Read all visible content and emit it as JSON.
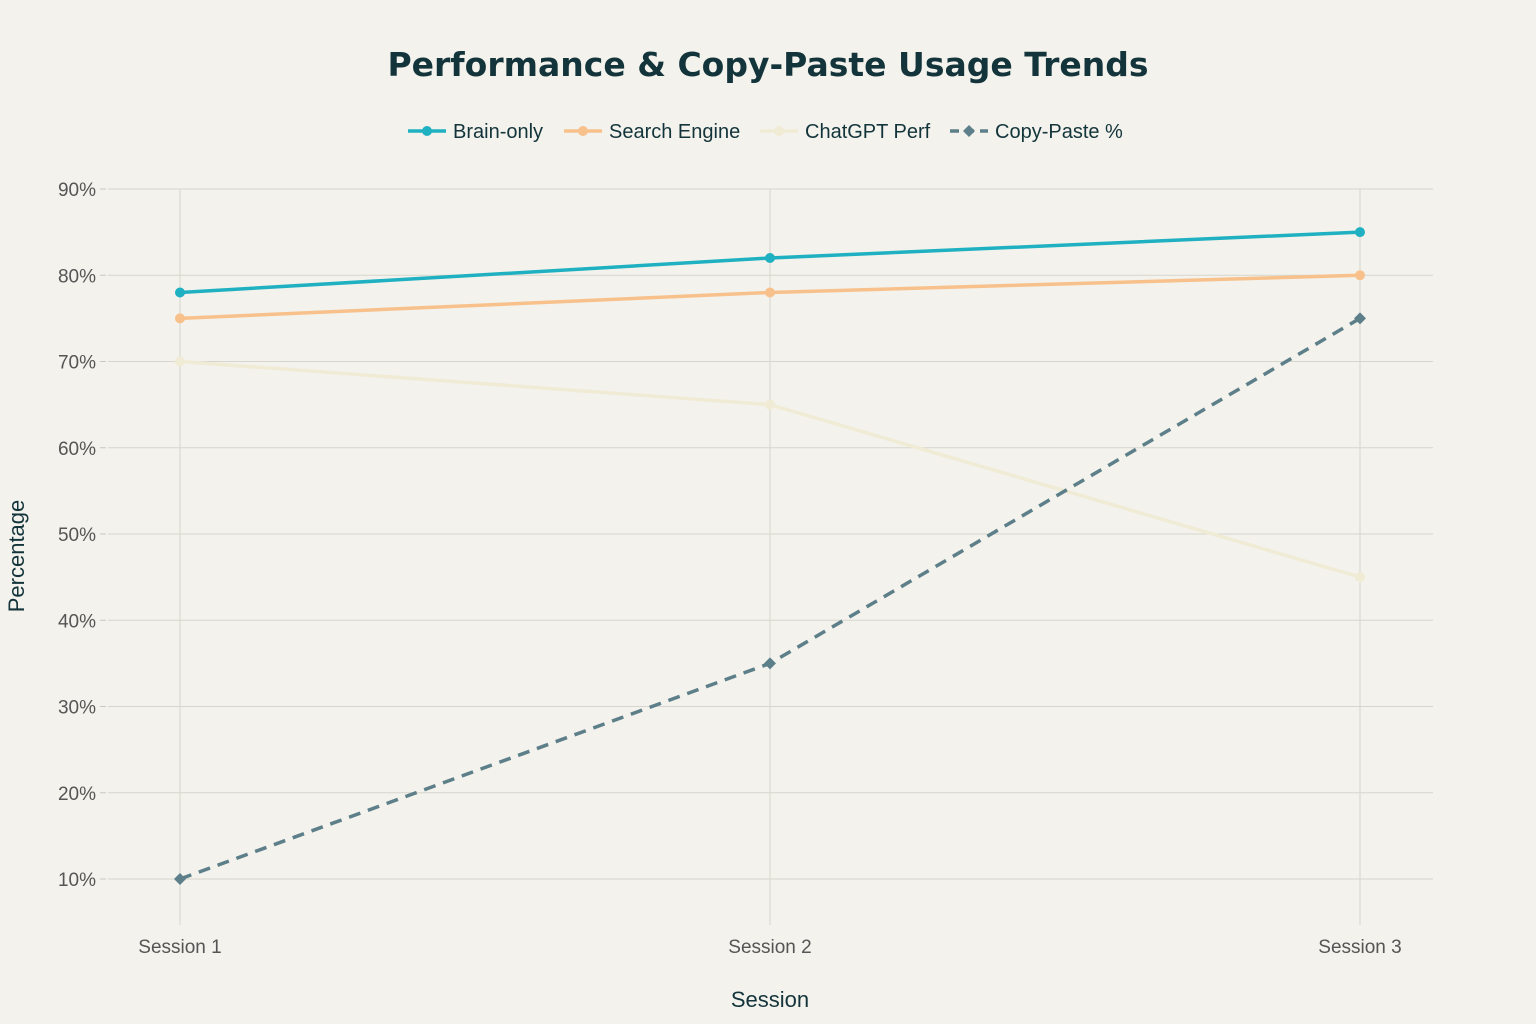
{
  "chart_data": {
    "type": "line",
    "title": "Performance & Copy-Paste Usage Trends",
    "xlabel": "Session",
    "ylabel": "Percentage",
    "categories": [
      "Session 1",
      "Session 2",
      "Session 3"
    ],
    "ylim": [
      5,
      90
    ],
    "yticks": [
      10,
      20,
      30,
      40,
      50,
      60,
      70,
      80,
      90
    ],
    "ytick_suffix": "%",
    "grid": true,
    "legend_position": "top-center",
    "series": [
      {
        "name": "Brain-only",
        "values": [
          78,
          82,
          85
        ],
        "color": "#1FB1C1",
        "marker": "circle",
        "dash": "solid"
      },
      {
        "name": "Search Engine",
        "values": [
          75,
          78,
          80
        ],
        "color": "#F8C18B",
        "marker": "circle",
        "dash": "solid"
      },
      {
        "name": "ChatGPT Perf",
        "values": [
          70,
          65,
          45
        ],
        "color": "#F0EBD5",
        "marker": "circle",
        "dash": "solid"
      },
      {
        "name": "Copy-Paste %",
        "values": [
          10,
          35,
          75
        ],
        "color": "#5D7F89",
        "marker": "diamond",
        "dash": "dashed"
      }
    ]
  }
}
